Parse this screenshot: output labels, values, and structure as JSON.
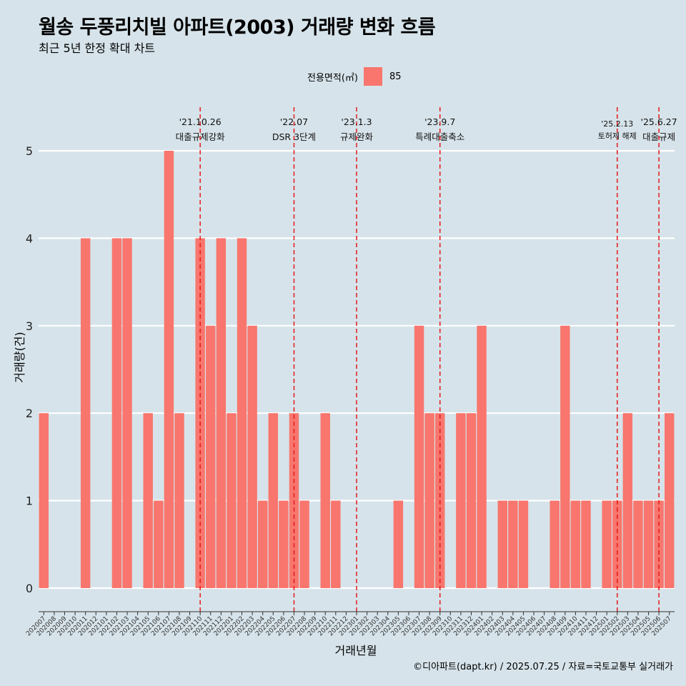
{
  "title": "월송 두풍리치빌 아파트(2003) 거래량 변화 흐름",
  "subtitle": "최근 5년 한정 확대 차트",
  "caption": "©디아파트(dapt.kr) / 2025.07.25 / 자료=국토교통부 실거래가",
  "colors": {
    "background": "#d6e3ea",
    "bar": "#f8766d",
    "event_line": "#e41a1c",
    "grid": "#ffffff"
  },
  "chart_data": {
    "type": "bar",
    "xlabel": "거래년월",
    "ylabel": "거래량(건)",
    "ylim": [
      0,
      5
    ],
    "y_ticks": [
      0,
      1,
      2,
      3,
      4,
      5
    ],
    "grid": true,
    "legend": {
      "title": "전용면적(㎡)",
      "position": "top",
      "entries": [
        "85"
      ]
    },
    "categories": [
      "202007",
      "202008",
      "202009",
      "202010",
      "202011",
      "202012",
      "202101",
      "202102",
      "202103",
      "202104",
      "202105",
      "202106",
      "202107",
      "202108",
      "202109",
      "202110",
      "202111",
      "202112",
      "202201",
      "202202",
      "202203",
      "202204",
      "202205",
      "202206",
      "202207",
      "202208",
      "202209",
      "202210",
      "202211",
      "202212",
      "202301",
      "202302",
      "202303",
      "202304",
      "202305",
      "202306",
      "202307",
      "202308",
      "202309",
      "202310",
      "202311",
      "202312",
      "202401",
      "202402",
      "202403",
      "202404",
      "202405",
      "202406",
      "202407",
      "202408",
      "202409",
      "202410",
      "202411",
      "202412",
      "202501",
      "202502",
      "202503",
      "202504",
      "202505",
      "202506",
      "202507"
    ],
    "series": [
      {
        "name": "85",
        "values": [
          2,
          0,
          0,
          0,
          4,
          0,
          0,
          4,
          4,
          0,
          2,
          1,
          5,
          2,
          0,
          4,
          3,
          4,
          2,
          4,
          3,
          1,
          2,
          1,
          2,
          1,
          0,
          2,
          1,
          0,
          0,
          0,
          0,
          0,
          1,
          0,
          3,
          2,
          2,
          0,
          2,
          2,
          3,
          0,
          1,
          1,
          1,
          0,
          0,
          1,
          3,
          1,
          1,
          0,
          1,
          1,
          2,
          1,
          1,
          1,
          2
        ]
      }
    ],
    "events": [
      {
        "at": "202110",
        "date": "'21.10.26",
        "label": "대출규제강화"
      },
      {
        "at": "202207",
        "date": "'22.07",
        "label": "DSR 3단계"
      },
      {
        "at": "202301",
        "date": "'23.1.3",
        "label": "규제완화"
      },
      {
        "at": "202309",
        "date": "'23.9.7",
        "label": "특례대출축소"
      },
      {
        "at": "202502",
        "date": "'25.2.13",
        "label": "토허제 해제"
      },
      {
        "at": "202506",
        "date": "'25.6.27",
        "label": "대출규제"
      }
    ]
  }
}
